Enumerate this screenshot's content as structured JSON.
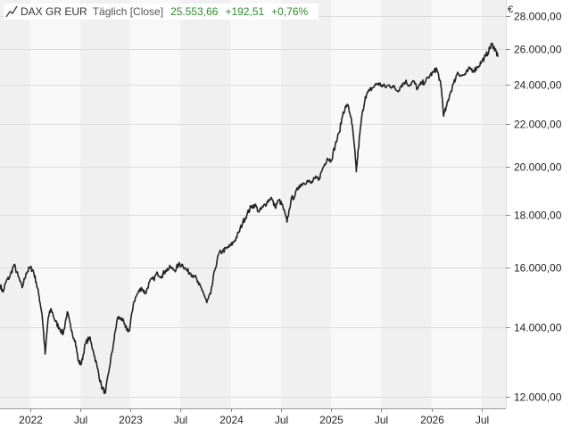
{
  "legend": {
    "icon": "line-chart-icon",
    "instrument": "DAX GR EUR",
    "mode": "Täglich [Close]",
    "last": "25.553,66",
    "change_abs": "+192,51",
    "change_pct": "+0,76%",
    "positive_color": "#2e8b2e"
  },
  "chart_data": {
    "type": "line",
    "y_scale": "log",
    "y_unit": "€",
    "ylim": [
      11700,
      29000
    ],
    "xlim": [
      2021.7,
      2026.74
    ],
    "x_ticks": [
      {
        "x": 2022.0,
        "label": "2022"
      },
      {
        "x": 2022.5,
        "label": "Jul"
      },
      {
        "x": 2023.0,
        "label": "2023"
      },
      {
        "x": 2023.5,
        "label": "Jul"
      },
      {
        "x": 2024.0,
        "label": "2024"
      },
      {
        "x": 2024.5,
        "label": "Jul"
      },
      {
        "x": 2025.0,
        "label": "2025"
      },
      {
        "x": 2025.5,
        "label": "Jul"
      },
      {
        "x": 2026.0,
        "label": "2026"
      },
      {
        "x": 2026.5,
        "label": "Jul"
      }
    ],
    "y_ticks": [
      {
        "y": 12000,
        "label": "12.000,00"
      },
      {
        "y": 14000,
        "label": "14.000,00"
      },
      {
        "y": 16000,
        "label": "16.000,00"
      },
      {
        "y": 18000,
        "label": "18.000,00"
      },
      {
        "y": 20000,
        "label": "20.000,00"
      },
      {
        "y": 22000,
        "label": "22.000,00"
      },
      {
        "y": 24000,
        "label": "24.000,00"
      },
      {
        "y": 26000,
        "label": "26.000,00"
      },
      {
        "y": 28000,
        "label": "28.000,00"
      }
    ],
    "grid": true,
    "legend_position": "top-left",
    "series": [
      {
        "color": "#222222",
        "points": [
          [
            2021.7,
            15400
          ],
          [
            2021.73,
            15150
          ],
          [
            2021.76,
            15500
          ],
          [
            2021.8,
            15700
          ],
          [
            2021.84,
            16100
          ],
          [
            2021.88,
            15700
          ],
          [
            2021.92,
            15300
          ],
          [
            2021.96,
            15800
          ],
          [
            2022.0,
            16000
          ],
          [
            2022.03,
            15900
          ],
          [
            2022.06,
            15500
          ],
          [
            2022.09,
            15000
          ],
          [
            2022.12,
            14400
          ],
          [
            2022.15,
            13200
          ],
          [
            2022.18,
            14300
          ],
          [
            2022.21,
            14600
          ],
          [
            2022.25,
            14200
          ],
          [
            2022.29,
            14000
          ],
          [
            2022.33,
            13800
          ],
          [
            2022.37,
            14500
          ],
          [
            2022.41,
            13900
          ],
          [
            2022.45,
            13600
          ],
          [
            2022.48,
            13000
          ],
          [
            2022.51,
            12900
          ],
          [
            2022.55,
            13500
          ],
          [
            2022.59,
            13700
          ],
          [
            2022.63,
            13300
          ],
          [
            2022.67,
            12800
          ],
          [
            2022.71,
            12300
          ],
          [
            2022.75,
            12100
          ],
          [
            2022.79,
            12800
          ],
          [
            2022.83,
            13500
          ],
          [
            2022.87,
            14300
          ],
          [
            2022.91,
            14300
          ],
          [
            2022.95,
            14000
          ],
          [
            2022.99,
            13900
          ],
          [
            2023.03,
            14800
          ],
          [
            2023.07,
            15100
          ],
          [
            2023.11,
            15300
          ],
          [
            2023.15,
            15100
          ],
          [
            2023.19,
            15500
          ],
          [
            2023.23,
            15600
          ],
          [
            2023.27,
            15800
          ],
          [
            2023.31,
            15700
          ],
          [
            2023.35,
            15900
          ],
          [
            2023.4,
            16000
          ],
          [
            2023.44,
            15900
          ],
          [
            2023.48,
            16100
          ],
          [
            2023.52,
            16100
          ],
          [
            2023.56,
            15900
          ],
          [
            2023.6,
            15800
          ],
          [
            2023.64,
            15700
          ],
          [
            2023.68,
            15400
          ],
          [
            2023.72,
            15200
          ],
          [
            2023.76,
            14800
          ],
          [
            2023.8,
            15100
          ],
          [
            2023.84,
            15900
          ],
          [
            2023.88,
            16500
          ],
          [
            2023.92,
            16600
          ],
          [
            2023.96,
            16700
          ],
          [
            2024.0,
            16800
          ],
          [
            2024.04,
            17000
          ],
          [
            2024.08,
            17300
          ],
          [
            2024.12,
            17700
          ],
          [
            2024.16,
            18000
          ],
          [
            2024.2,
            18300
          ],
          [
            2024.24,
            18400
          ],
          [
            2024.28,
            18100
          ],
          [
            2024.32,
            18300
          ],
          [
            2024.36,
            18500
          ],
          [
            2024.4,
            18700
          ],
          [
            2024.44,
            18300
          ],
          [
            2024.48,
            18600
          ],
          [
            2024.52,
            18300
          ],
          [
            2024.56,
            17700
          ],
          [
            2024.6,
            18600
          ],
          [
            2024.64,
            18800
          ],
          [
            2024.68,
            19200
          ],
          [
            2024.72,
            19300
          ],
          [
            2024.76,
            19400
          ],
          [
            2024.8,
            19300
          ],
          [
            2024.84,
            19500
          ],
          [
            2024.88,
            19500
          ],
          [
            2024.92,
            20000
          ],
          [
            2024.96,
            20400
          ],
          [
            2025.0,
            20300
          ],
          [
            2025.04,
            21000
          ],
          [
            2025.08,
            21600
          ],
          [
            2025.12,
            22600
          ],
          [
            2025.16,
            23000
          ],
          [
            2025.2,
            22300
          ],
          [
            2025.23,
            21000
          ],
          [
            2025.25,
            19800
          ],
          [
            2025.27,
            20800
          ],
          [
            2025.3,
            22200
          ],
          [
            2025.34,
            23400
          ],
          [
            2025.38,
            23700
          ],
          [
            2025.42,
            23900
          ],
          [
            2025.46,
            24100
          ],
          [
            2025.5,
            24000
          ],
          [
            2025.54,
            23900
          ],
          [
            2025.58,
            24000
          ],
          [
            2025.62,
            23900
          ],
          [
            2025.66,
            23700
          ],
          [
            2025.7,
            24000
          ],
          [
            2025.74,
            24200
          ],
          [
            2025.78,
            24000
          ],
          [
            2025.82,
            24200
          ],
          [
            2025.86,
            23800
          ],
          [
            2025.9,
            24100
          ],
          [
            2025.94,
            24200
          ],
          [
            2025.98,
            24500
          ],
          [
            2026.02,
            24700
          ],
          [
            2026.05,
            24900
          ],
          [
            2026.08,
            24300
          ],
          [
            2026.1,
            23700
          ],
          [
            2026.12,
            22400
          ],
          [
            2026.15,
            22900
          ],
          [
            2026.18,
            23500
          ],
          [
            2026.22,
            24100
          ],
          [
            2026.26,
            24700
          ],
          [
            2026.3,
            24500
          ],
          [
            2026.34,
            24600
          ],
          [
            2026.38,
            24900
          ],
          [
            2026.42,
            24800
          ],
          [
            2026.46,
            25000
          ],
          [
            2026.5,
            25300
          ],
          [
            2026.54,
            25600
          ],
          [
            2026.57,
            25900
          ],
          [
            2026.6,
            26300
          ],
          [
            2026.62,
            26100
          ],
          [
            2026.64,
            25900
          ],
          [
            2026.66,
            25554
          ]
        ]
      }
    ]
  }
}
